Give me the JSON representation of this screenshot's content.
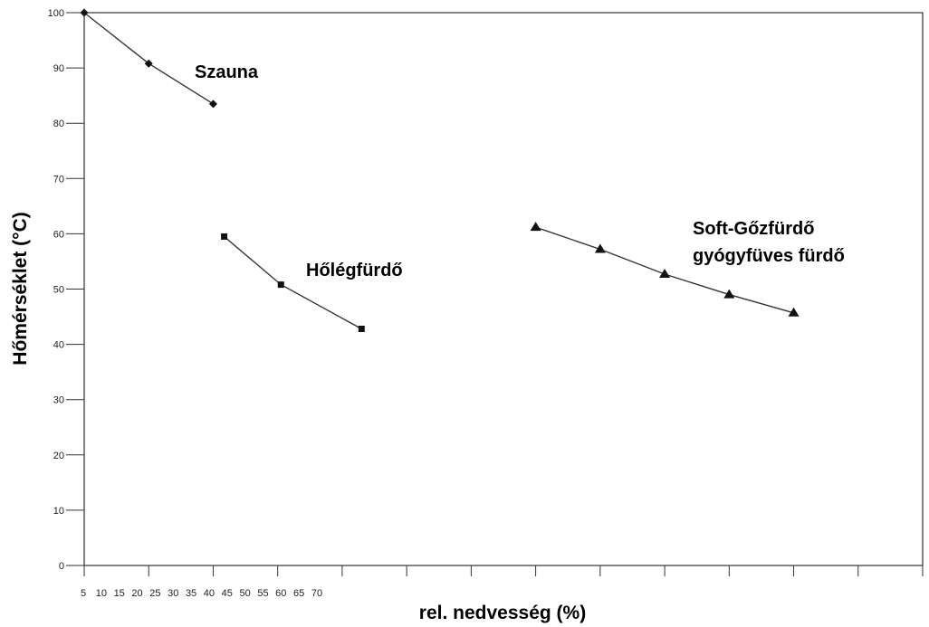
{
  "chart_data": {
    "type": "line",
    "title": "",
    "xlabel": "rel. nedvesség (%)",
    "ylabel": "Hőmérséklet (°C)",
    "ylim": [
      0,
      100
    ],
    "yticks": [
      0,
      10,
      20,
      30,
      40,
      50,
      60,
      70,
      80,
      90,
      100
    ],
    "xtick_labels": [
      "5",
      "10",
      "15",
      "20",
      "25",
      "30",
      "35",
      "40",
      "45",
      "50",
      "55",
      "60",
      "65",
      "70"
    ],
    "grid": false,
    "colors": {
      "line": "#333333",
      "axis": "#333333"
    },
    "series": [
      {
        "name": "Szauna",
        "marker": "diamond",
        "points": [
          {
            "i": 0,
            "y": 100
          },
          {
            "i": 1,
            "y": 90.8
          },
          {
            "i": 2,
            "y": 83.5
          }
        ]
      },
      {
        "name": "Hőlégfürdő",
        "marker": "square",
        "points": [
          {
            "i": 2.17,
            "y": 59.5
          },
          {
            "i": 3.05,
            "y": 50.8
          },
          {
            "i": 4.3,
            "y": 42.8
          }
        ]
      },
      {
        "name_lines": [
          "Soft-Gőzfürdő",
          "gyógyfüves fürdő"
        ],
        "marker": "triangle",
        "points": [
          {
            "i": 7,
            "y": 61.2
          },
          {
            "i": 8,
            "y": 57.2
          },
          {
            "i": 9,
            "y": 52.7
          },
          {
            "i": 10,
            "y": 49
          },
          {
            "i": 11,
            "y": 45.7
          }
        ]
      }
    ]
  }
}
